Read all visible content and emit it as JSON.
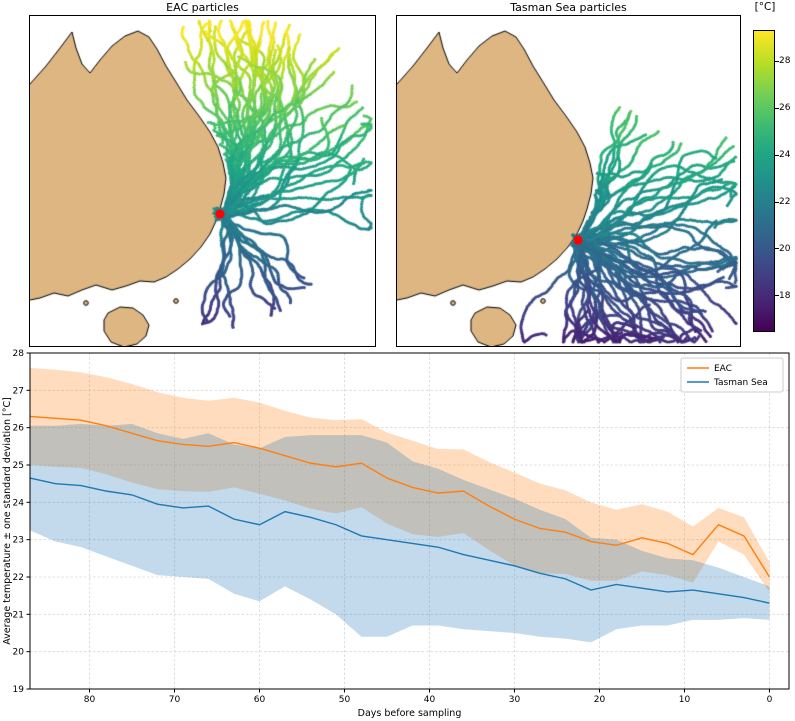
{
  "figure": {
    "colorbar": {
      "unit_label": "[°C]",
      "ticks": [
        18,
        20,
        22,
        24,
        26,
        28
      ],
      "vmin": 16.5,
      "vmax": 29.3,
      "colormap": "viridis"
    },
    "colors": {
      "land": "#ddb682",
      "coastline": "#000000",
      "ocean": "#ffffff",
      "sampling_marker": "#ff0000",
      "eac_line": "#ff7f0e",
      "tasman_line": "#1f77b4",
      "grid": "#d7d7d7"
    }
  },
  "chart_data": [
    {
      "type": "scatter",
      "title": "EAC particles",
      "marker": {
        "name": "sampling-site",
        "color": "#ff0000",
        "map_xy": [
          190,
          198
        ]
      },
      "color_variable": "temperature [°C]",
      "colormap": "viridis",
      "color_range": [
        16.5,
        29.3
      ],
      "particles": {
        "n_trajectories": 62,
        "seed": 7,
        "origin_xy": [
          190,
          198
        ],
        "groups": [
          {
            "frac": 0.5,
            "angle": -1.45,
            "spread": 0.45,
            "steps": 85,
            "step_len": 2.5
          },
          {
            "frac": 0.18,
            "angle": -0.95,
            "spread": 0.35,
            "steps": 80,
            "step_len": 2.5
          },
          {
            "frac": 0.12,
            "angle": -0.35,
            "spread": 0.35,
            "steps": 70,
            "step_len": 2.3
          },
          {
            "frac": 0.2,
            "angle": 1.2,
            "spread": 0.5,
            "steps": 60,
            "step_len": 2.0
          }
        ]
      }
    },
    {
      "type": "scatter",
      "title": "Tasman Sea particles",
      "marker": {
        "name": "sampling-site",
        "color": "#ff0000",
        "map_xy": [
          181,
          224
        ]
      },
      "color_variable": "temperature [°C]",
      "colormap": "viridis",
      "color_range": [
        16.5,
        29.3
      ],
      "particles": {
        "n_trajectories": 60,
        "seed": 21,
        "origin_xy": [
          181,
          224
        ],
        "groups": [
          {
            "frac": 0.3,
            "angle": -0.15,
            "spread": 0.4,
            "steps": 80,
            "step_len": 2.4
          },
          {
            "frac": 0.3,
            "angle": 0.55,
            "spread": 0.35,
            "steps": 75,
            "step_len": 2.3
          },
          {
            "frac": 0.25,
            "angle": 1.15,
            "spread": 0.4,
            "steps": 70,
            "step_len": 2.2
          },
          {
            "frac": 0.15,
            "angle": -1.05,
            "spread": 0.35,
            "steps": 65,
            "step_len": 2.2
          }
        ]
      }
    },
    {
      "type": "line",
      "xlabel": "Days before sampling",
      "ylabel": "Average temperature ± one standard deviation [°C]",
      "xlim": [
        87,
        -2.3
      ],
      "ylim": [
        19,
        28
      ],
      "x_axis_reversed": true,
      "grid": true,
      "x_ticks": [
        80,
        70,
        60,
        50,
        40,
        30,
        20,
        10,
        0
      ],
      "y_ticks": [
        19,
        20,
        21,
        22,
        23,
        24,
        25,
        26,
        27,
        28
      ],
      "x": [
        87,
        84,
        81,
        78,
        75,
        72,
        69,
        66,
        63,
        60,
        57,
        54,
        51,
        48,
        45,
        42,
        39,
        36,
        33,
        30,
        27,
        24,
        21,
        18,
        15,
        12,
        9,
        6,
        3,
        0
      ],
      "series": [
        {
          "name": "EAC",
          "color": "#ff7f0e",
          "band": "mean ± 1 std",
          "mean": [
            26.3,
            26.25,
            26.2,
            26.05,
            25.85,
            25.65,
            25.55,
            25.5,
            25.6,
            25.45,
            25.25,
            25.05,
            24.95,
            25.05,
            24.65,
            24.4,
            24.25,
            24.3,
            23.9,
            23.55,
            23.3,
            23.2,
            22.95,
            22.85,
            23.05,
            22.9,
            22.6,
            23.4,
            23.1,
            22.0
          ],
          "std": [
            1.3,
            1.3,
            1.28,
            1.3,
            1.32,
            1.3,
            1.25,
            1.22,
            1.2,
            1.22,
            1.2,
            1.22,
            1.25,
            1.18,
            1.22,
            1.25,
            1.18,
            1.12,
            1.18,
            1.25,
            1.2,
            1.12,
            1.05,
            0.95,
            0.9,
            0.85,
            0.75,
            0.45,
            0.5,
            0.4
          ]
        },
        {
          "name": "Tasman Sea",
          "color": "#1f77b4",
          "band": "mean ± 1 std",
          "mean": [
            24.65,
            24.5,
            24.45,
            24.3,
            24.2,
            23.95,
            23.85,
            23.9,
            23.55,
            23.4,
            23.75,
            23.6,
            23.4,
            23.1,
            23.0,
            22.9,
            22.8,
            22.6,
            22.45,
            22.3,
            22.1,
            21.95,
            21.65,
            21.8,
            21.7,
            21.6,
            21.65,
            21.55,
            21.45,
            21.3
          ],
          "std": [
            1.4,
            1.55,
            1.65,
            1.75,
            1.9,
            1.9,
            1.85,
            1.95,
            2.0,
            2.05,
            2.0,
            2.2,
            2.4,
            2.7,
            2.6,
            2.2,
            2.1,
            2.0,
            1.9,
            1.8,
            1.7,
            1.6,
            1.4,
            1.2,
            1.0,
            0.9,
            0.8,
            0.7,
            0.55,
            0.45
          ]
        }
      ],
      "legend": {
        "position": "upper right",
        "entries": [
          "EAC",
          "Tasman Sea"
        ]
      }
    }
  ]
}
